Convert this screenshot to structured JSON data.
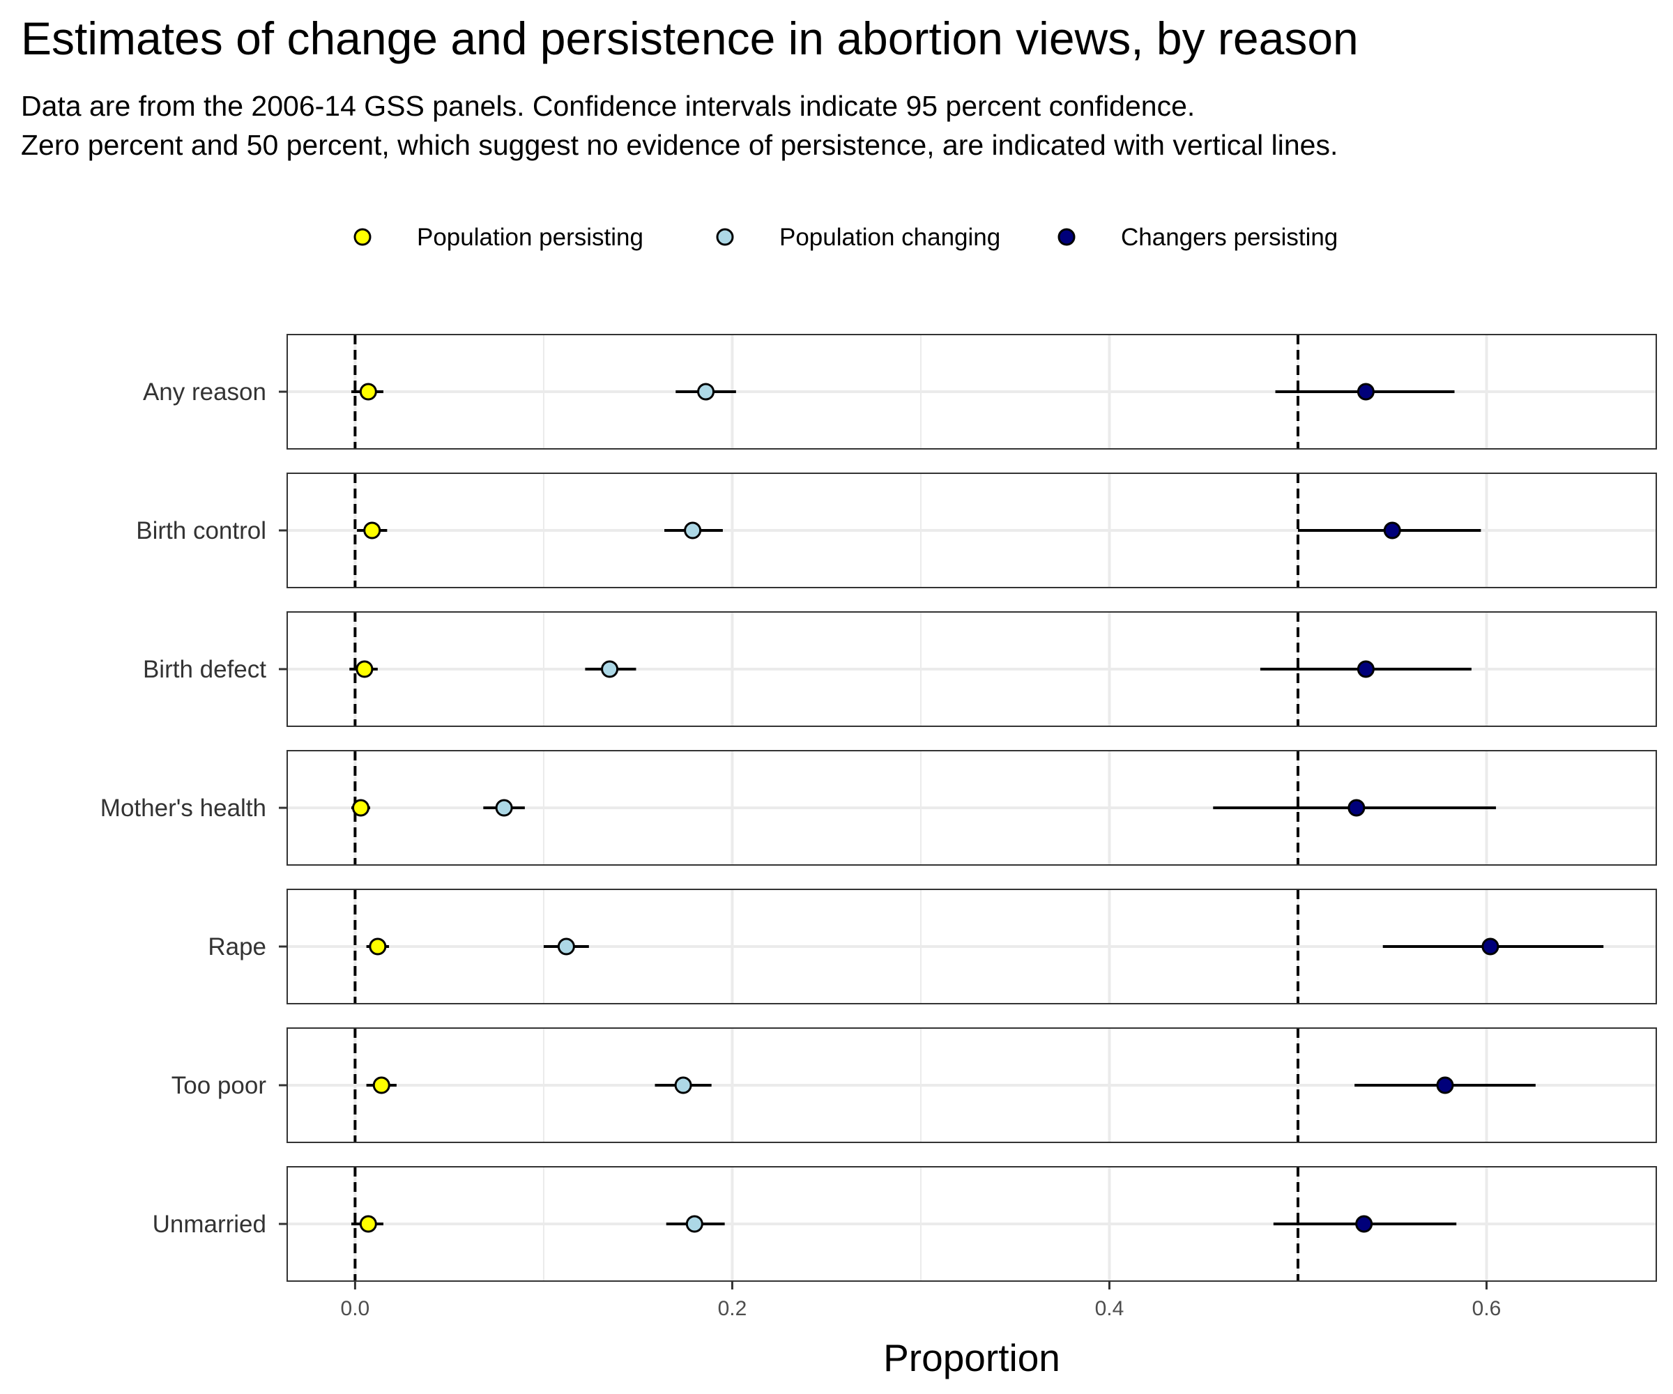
{
  "chart_data": {
    "type": "scatter",
    "title": "Estimates of change and persistence in abortion views, by reason",
    "subtitle_lines": [
      "Data are from the 2006-14 GSS panels. Confidence intervals indicate 95 percent confidence.",
      "Zero percent and 50 percent, which suggest no evidence of persistence, are indicated with vertical lines."
    ],
    "xlabel": "Proportion",
    "ylabel": "",
    "xlim": [
      -0.036,
      0.69
    ],
    "x_ticks": [
      0.0,
      0.2,
      0.4,
      0.6
    ],
    "x_tick_labels": [
      "0.0",
      "0.2",
      "0.4",
      "0.6"
    ],
    "reference_lines": [
      0.0,
      0.5
    ],
    "legend_position": "top",
    "grid": true,
    "categories": [
      "Any reason",
      "Birth control",
      "Birth defect",
      "Mother's health",
      "Rape",
      "Too poor",
      "Unmarried"
    ],
    "series": [
      {
        "name": "Population persisting",
        "color": "#ffff00",
        "estimate": [
          0.007,
          0.009,
          0.005,
          0.003,
          0.012,
          0.014,
          0.007
        ],
        "lower": [
          -0.002,
          0.001,
          -0.003,
          -0.002,
          0.006,
          0.006,
          -0.002
        ],
        "upper": [
          0.015,
          0.017,
          0.012,
          0.008,
          0.018,
          0.022,
          0.015
        ]
      },
      {
        "name": "Population changing",
        "color": "#add8e6",
        "estimate": [
          0.186,
          0.179,
          0.135,
          0.079,
          0.112,
          0.174,
          0.18
        ],
        "lower": [
          0.17,
          0.164,
          0.122,
          0.068,
          0.1,
          0.159,
          0.165
        ],
        "upper": [
          0.202,
          0.195,
          0.149,
          0.09,
          0.124,
          0.189,
          0.196
        ]
      },
      {
        "name": "Changers persisting",
        "color": "#00007a",
        "estimate": [
          0.536,
          0.55,
          0.536,
          0.531,
          0.602,
          0.578,
          0.535
        ],
        "lower": [
          0.488,
          0.5,
          0.48,
          0.455,
          0.545,
          0.53,
          0.487
        ],
        "upper": [
          0.583,
          0.597,
          0.592,
          0.605,
          0.662,
          0.626,
          0.584
        ]
      }
    ]
  }
}
